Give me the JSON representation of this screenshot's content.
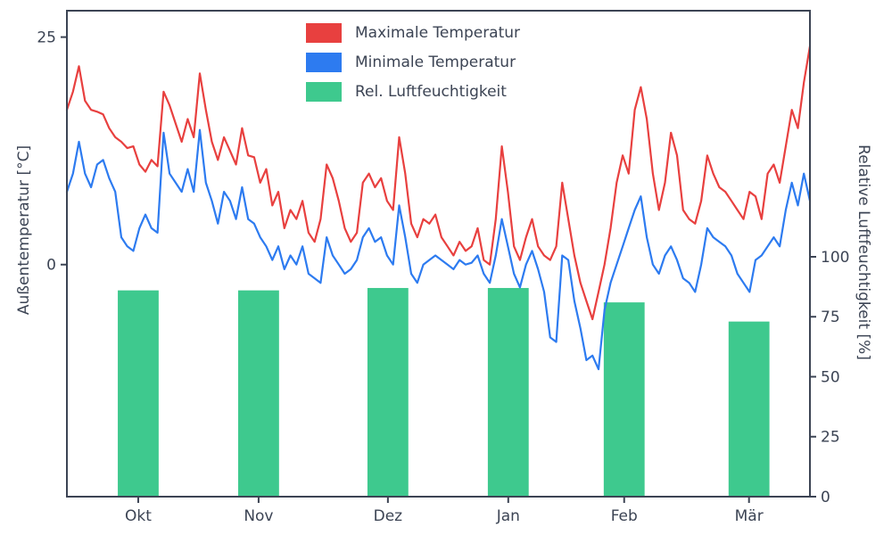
{
  "figure": {
    "left_axis_label": "Außentemperatur [°C]",
    "right_axis_label": "Relative Luftfeuchtigkeit [%]"
  },
  "legend": {
    "items": [
      {
        "label": "Maximale Temperatur",
        "color": "#e8403f"
      },
      {
        "label": "Minimale Temperatur",
        "color": "#2d7bf0"
      },
      {
        "label": "Rel. Luftfeuchtigkeit",
        "color": "#3ec98e"
      }
    ]
  },
  "style": {
    "text_color": "#3c4454",
    "spine_color": "#3c4454",
    "background": "#ffffff"
  },
  "chart_data": {
    "type": "line+bar",
    "title": "",
    "xlabel": "",
    "grid": false,
    "legend_position": "upper center-left",
    "x_tick_labels": [
      "Okt",
      "Nov",
      "Dez",
      "Jan",
      "Feb",
      "Mär"
    ],
    "x_tick_positions": [
      0.096,
      0.258,
      0.432,
      0.594,
      0.75,
      0.918
    ],
    "left_axis": {
      "label": "Außentemperatur [°C]",
      "ticks": [
        25,
        0
      ],
      "ylim": [
        -25.5,
        27.9
      ]
    },
    "right_axis": {
      "label": "Relative Luftfeuchtigkeit [%]",
      "ticks": [
        100,
        75,
        50,
        25,
        0
      ],
      "ylim": [
        0,
        202.6
      ]
    },
    "series": [
      {
        "name": "Maximale Temperatur",
        "type": "line",
        "axis": "left",
        "color": "#e8403f",
        "values": [
          17,
          19,
          21.8,
          18,
          17,
          16.8,
          16.5,
          15,
          14,
          13.5,
          12.8,
          13,
          11,
          10.2,
          11.5,
          10.8,
          19,
          17.5,
          15.5,
          13.5,
          16,
          14,
          21,
          17,
          13.5,
          11.5,
          14,
          12.5,
          11,
          15,
          12,
          11.8,
          9,
          10.5,
          6.5,
          8,
          4,
          6,
          5,
          7,
          3.5,
          2.5,
          5,
          11,
          9.5,
          7,
          4,
          2.5,
          3.5,
          9,
          10,
          8.5,
          9.5,
          7,
          6,
          14,
          10,
          4.5,
          3,
          5,
          4.5,
          5.5,
          3,
          2,
          1,
          2.5,
          1.5,
          2,
          4,
          0.5,
          0,
          5,
          13,
          8,
          2,
          0.5,
          3,
          5,
          2,
          1,
          0.5,
          2,
          9,
          5,
          1,
          -2,
          -4,
          -6,
          -3,
          0,
          4,
          9,
          12,
          10,
          17,
          19.5,
          16,
          10,
          6,
          9,
          14.5,
          12,
          6,
          5,
          4.5,
          7,
          12,
          10,
          8.5,
          8,
          7,
          6,
          5,
          8,
          7.5,
          5,
          10,
          11,
          9,
          13,
          17,
          15,
          20,
          24
        ]
      },
      {
        "name": "Minimale Temperatur",
        "type": "line",
        "axis": "left",
        "color": "#2d7bf0",
        "values": [
          8,
          10,
          13.5,
          10,
          8.5,
          11,
          11.5,
          9.5,
          8,
          3,
          2,
          1.5,
          4,
          5.5,
          4,
          3.5,
          14.5,
          10,
          9,
          8,
          10.5,
          8,
          14.8,
          9,
          7,
          4.5,
          8,
          7,
          5,
          8.5,
          5,
          4.5,
          3,
          2,
          0.5,
          2,
          -0.5,
          1,
          0,
          2,
          -1,
          -1.5,
          -2,
          3,
          1,
          0,
          -1,
          -0.5,
          0.5,
          3,
          4,
          2.5,
          3,
          1,
          0,
          6.5,
          3,
          -1,
          -2,
          0,
          0.5,
          1,
          0.5,
          0,
          -0.5,
          0.5,
          0,
          0.2,
          1,
          -1,
          -2,
          1,
          5,
          2,
          -1,
          -2.5,
          0,
          1.5,
          -0.5,
          -3,
          -8,
          -8.5,
          1,
          0.5,
          -4,
          -7,
          -10.5,
          -10,
          -11.5,
          -5,
          -2,
          0,
          2,
          4,
          6,
          7.5,
          3,
          0,
          -1,
          1,
          2,
          0.5,
          -1.5,
          -2,
          -3,
          0,
          4,
          3,
          2.5,
          2,
          1,
          -1,
          -2,
          -3,
          0.5,
          1,
          2,
          3,
          2,
          6,
          9,
          6.5,
          10,
          7
        ]
      },
      {
        "name": "Rel. Luftfeuchtigkeit",
        "type": "bar",
        "axis": "right",
        "color": "#3ec98e",
        "categories": [
          "Okt",
          "Nov",
          "Dez",
          "Jan",
          "Feb",
          "Mär"
        ],
        "values": [
          86,
          86,
          87,
          87,
          81,
          73
        ],
        "bar_positions": [
          0.096,
          0.258,
          0.432,
          0.594,
          0.75,
          0.918
        ],
        "bar_width_fraction": 0.055
      }
    ]
  }
}
